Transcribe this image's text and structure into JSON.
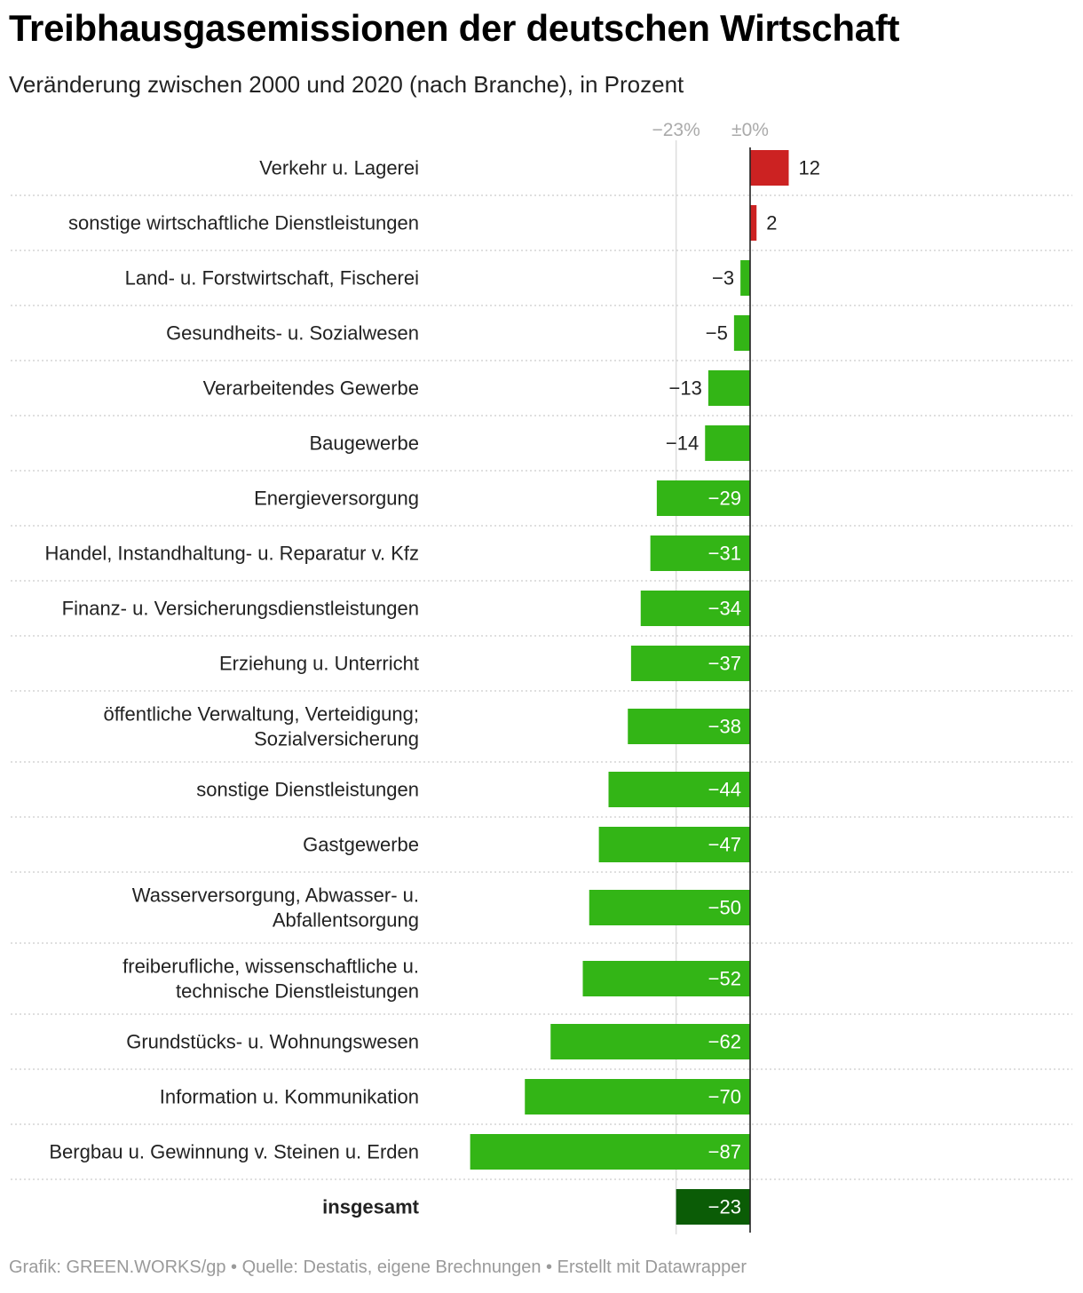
{
  "title": "Treibhausgasemissionen der deutschen Wirtschaft",
  "subtitle": "Veränderung zwischen 2000 und 2020 (nach Branche), in Prozent",
  "footer": "Grafik: GREEN.WORKS/gp • Quelle: Destatis, eigene Brechnungen • Erstellt mit Datawrapper",
  "colors": {
    "positive": "#cc2222",
    "negative": "#33b516",
    "total": "#0b5c06",
    "axis": "#222222",
    "reference": "#dddddd",
    "tick": "#aaaaaa",
    "divider": "#cccccc"
  },
  "chart_data": {
    "type": "bar",
    "orientation": "horizontal",
    "ticks": [
      {
        "value": -23,
        "label": "−23%"
      },
      {
        "value": 0,
        "label": "±0%"
      }
    ],
    "categories": [
      {
        "label": [
          "Verkehr u. Lagerei"
        ],
        "value": 12,
        "display": "12"
      },
      {
        "label": [
          "sonstige wirtschaftliche Dienstleistungen"
        ],
        "value": 2,
        "display": "2"
      },
      {
        "label": [
          "Land- u. Forstwirtschaft, Fischerei"
        ],
        "value": -3,
        "display": "−3"
      },
      {
        "label": [
          "Gesundheits- u. Sozialwesen"
        ],
        "value": -5,
        "display": "−5"
      },
      {
        "label": [
          "Verarbeitendes Gewerbe"
        ],
        "value": -13,
        "display": "−13"
      },
      {
        "label": [
          "Baugewerbe"
        ],
        "value": -14,
        "display": "−14"
      },
      {
        "label": [
          "Energieversorgung"
        ],
        "value": -29,
        "display": "−29"
      },
      {
        "label": [
          "Handel, Instandhaltung- u. Reparatur v. Kfz"
        ],
        "value": -31,
        "display": "−31"
      },
      {
        "label": [
          "Finanz- u. Versicherungsdienstleistungen"
        ],
        "value": -34,
        "display": "−34"
      },
      {
        "label": [
          "Erziehung u. Unterricht"
        ],
        "value": -37,
        "display": "−37"
      },
      {
        "label": [
          "öffentliche Verwaltung, Verteidigung;",
          "Sozialversicherung"
        ],
        "value": -38,
        "display": "−38"
      },
      {
        "label": [
          "sonstige Dienstleistungen"
        ],
        "value": -44,
        "display": "−44"
      },
      {
        "label": [
          "Gastgewerbe"
        ],
        "value": -47,
        "display": "−47"
      },
      {
        "label": [
          "Wasserversorgung, Abwasser- u.",
          "Abfallentsorgung"
        ],
        "value": -50,
        "display": "−50"
      },
      {
        "label": [
          "freiberufliche, wissenschaftliche u.",
          "technische Dienstleistungen"
        ],
        "value": -52,
        "display": "−52"
      },
      {
        "label": [
          "Grundstücks- u. Wohnungswesen"
        ],
        "value": -62,
        "display": "−62"
      },
      {
        "label": [
          "Information u. Kommunikation"
        ],
        "value": -70,
        "display": "−70"
      },
      {
        "label": [
          "Bergbau u. Gewinnung v. Steinen u. Erden"
        ],
        "value": -87,
        "display": "−87"
      },
      {
        "label": [
          "insgesamt"
        ],
        "value": -23,
        "display": "−23",
        "total": true
      }
    ]
  }
}
